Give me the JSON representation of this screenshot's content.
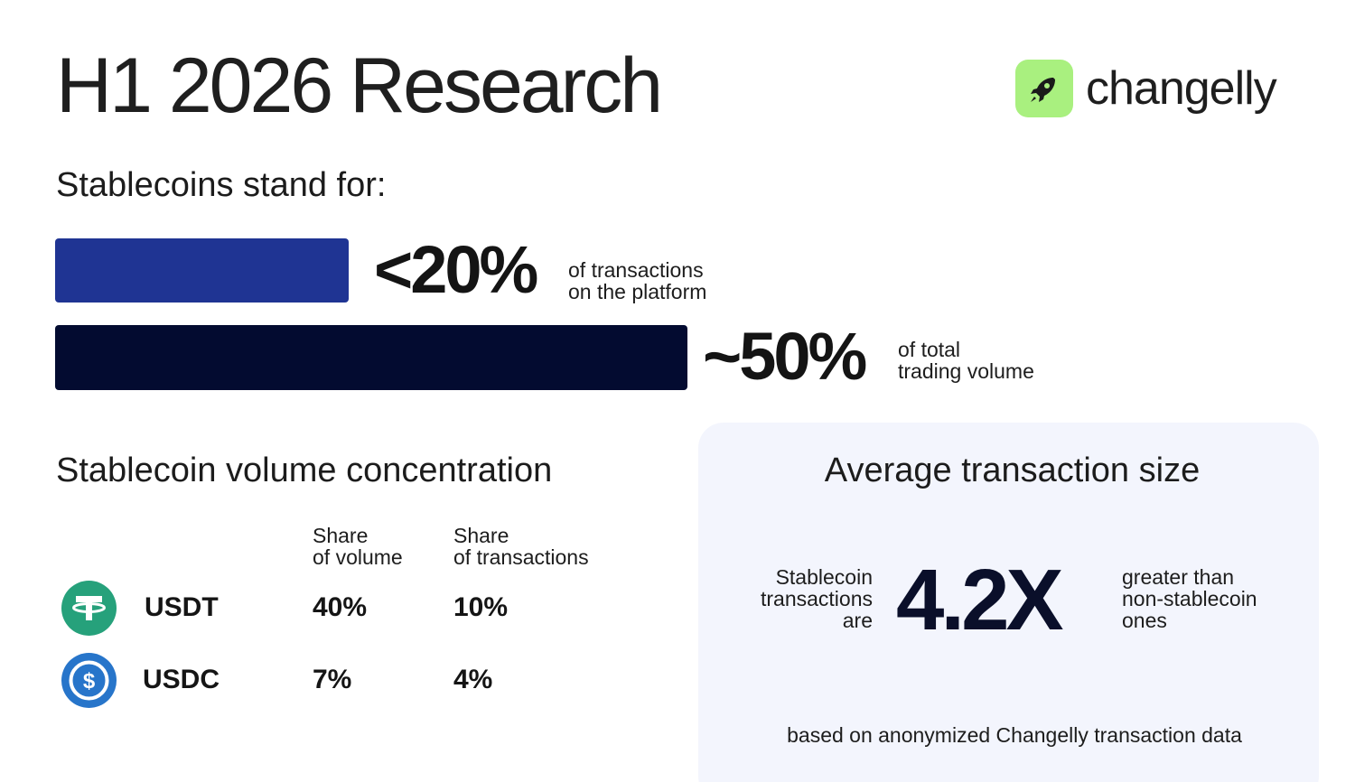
{
  "header": {
    "title": "H1 2026 Research",
    "brand": "changelly",
    "brand_icon": "rocket-icon",
    "brand_color": "#a9f07f"
  },
  "share": {
    "heading": "Stablecoins stand for:",
    "items": [
      {
        "value": "<20%",
        "line1": "of transactions",
        "line2": "on the platform",
        "bar_color": "#1f3493"
      },
      {
        "value": "~50%",
        "line1": "of total",
        "line2": "trading volume",
        "bar_color": "#030b30"
      }
    ]
  },
  "concentration": {
    "heading": "Stablecoin volume concentration",
    "columns": [
      {
        "line1": "Share",
        "line2": "of volume"
      },
      {
        "line1": "Share",
        "line2": "of transactions"
      }
    ],
    "rows": [
      {
        "coin": "USDT",
        "icon": "tether-icon",
        "color": "#26a17b",
        "volume": "40%",
        "transactions": "10%"
      },
      {
        "coin": "USDC",
        "icon": "usdc-icon",
        "color": "#2775ca",
        "volume": "7%",
        "transactions": "4%"
      }
    ]
  },
  "average": {
    "heading": "Average transaction size",
    "left": [
      "Stablecoin",
      "transactions",
      "are"
    ],
    "value": "4.2X",
    "right": [
      "greater than",
      "non-stablecoin",
      "ones"
    ],
    "footnote": "based on anonymized Changelly transaction data"
  }
}
